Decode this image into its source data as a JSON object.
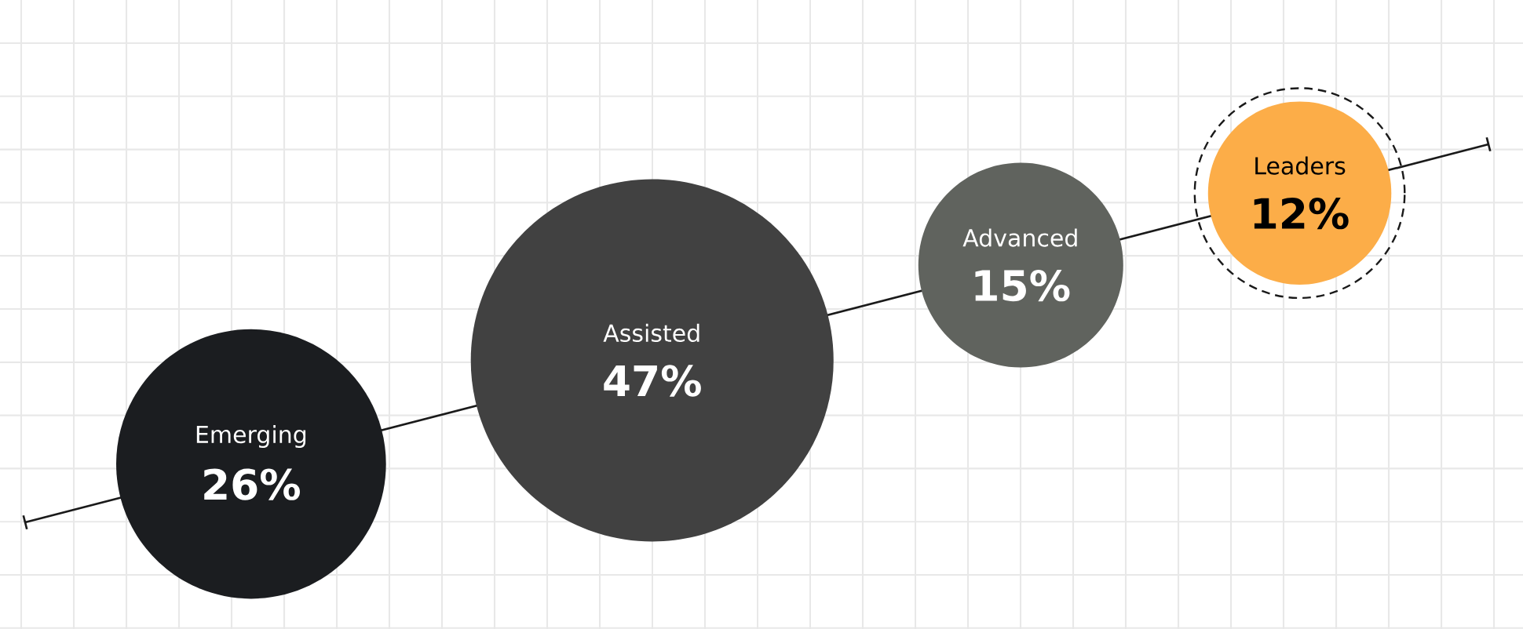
{
  "chart_data": {
    "type": "other",
    "categories": [
      "Emerging",
      "Assisted",
      "Advanced",
      "Leaders"
    ],
    "values": [
      26,
      47,
      15,
      12
    ],
    "value_labels": [
      "26%",
      "47%",
      "15%",
      "12%"
    ],
    "colors": [
      "#1b1d20",
      "#414141",
      "#60635e",
      "#fcad48"
    ]
  }
}
